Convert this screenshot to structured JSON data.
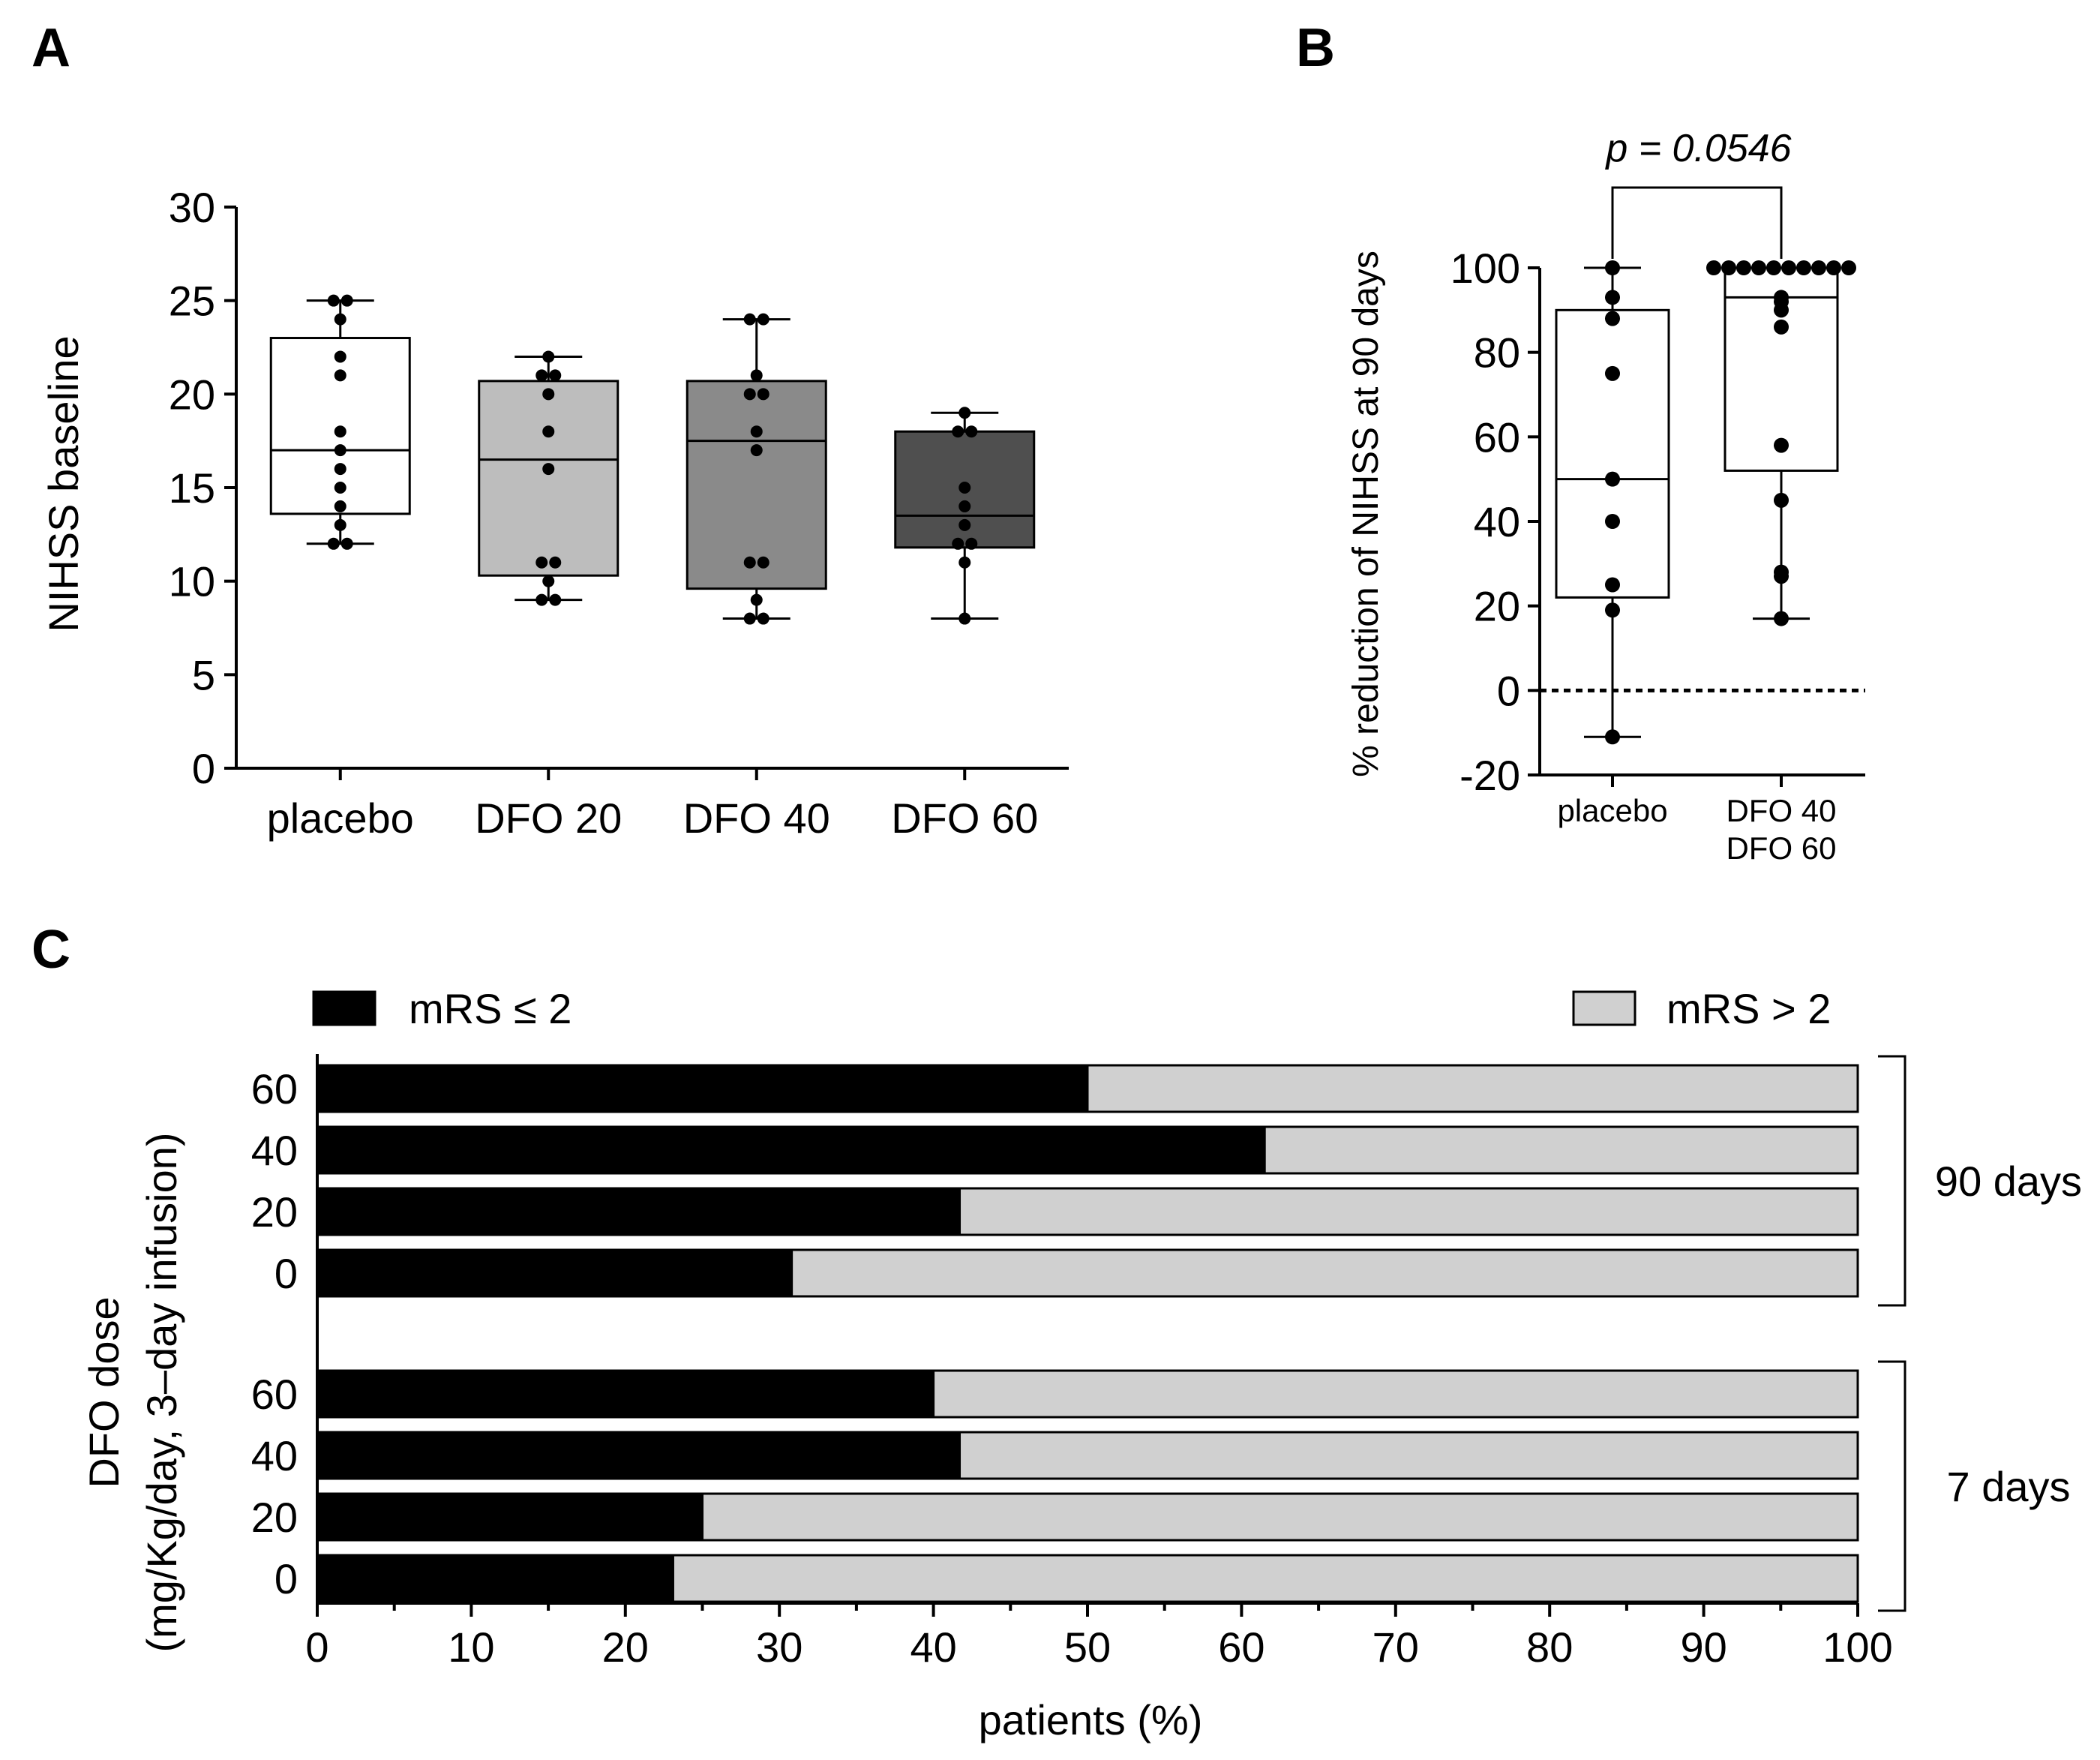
{
  "panels": {
    "A": {
      "letter": "A",
      "chart_data": {
        "type": "box",
        "ylabel": "NIHSS baseline",
        "xlabel": "",
        "ylim": [
          0,
          30
        ],
        "yticks": [
          0,
          5,
          10,
          15,
          20,
          25,
          30
        ],
        "categories": [
          "placebo",
          "DFO 20",
          "DFO 40",
          "DFO 60"
        ],
        "fill_colors": [
          "#ffffff",
          "#bdbdbd",
          "#8a8a8a",
          "#4f4f4f"
        ],
        "boxes": [
          {
            "min": 12,
            "q1": 13.6,
            "median": 17,
            "q3": 23,
            "max": 25
          },
          {
            "min": 9,
            "q1": 10.3,
            "median": 16.5,
            "q3": 20.7,
            "max": 22
          },
          {
            "min": 8,
            "q1": 9.6,
            "median": 17.5,
            "q3": 20.7,
            "max": 24
          },
          {
            "min": 8,
            "q1": 11.8,
            "median": 13.5,
            "q3": 18,
            "max": 19
          }
        ],
        "points": [
          [
            25,
            25,
            24,
            22,
            21,
            18,
            17,
            16,
            15,
            14,
            13,
            12,
            12
          ],
          [
            22,
            21,
            21,
            20,
            18,
            16,
            11,
            11,
            10,
            9,
            9
          ],
          [
            24,
            24,
            21,
            20,
            20,
            18,
            17,
            11,
            11,
            9,
            8,
            8
          ],
          [
            19,
            18,
            18,
            15,
            14,
            13,
            12,
            12,
            11,
            8
          ]
        ]
      }
    },
    "B": {
      "letter": "B",
      "annotation": "p = 0.0546",
      "chart_data": {
        "type": "box",
        "ylabel": "% reduction of NIHSS at 90 days",
        "xlabel": "",
        "ylim": [
          -20,
          100
        ],
        "yticks": [
          -20,
          0,
          20,
          40,
          60,
          80,
          100
        ],
        "reference_line": 0,
        "categories": [
          [
            "placebo"
          ],
          [
            "DFO 40",
            "DFO 60"
          ]
        ],
        "boxes": [
          {
            "min": -11,
            "q1": 22,
            "median": 50,
            "q3": 90,
            "max": 100
          },
          {
            "min": 17,
            "q1": 52,
            "median": 93,
            "q3": 100,
            "max": 100
          }
        ],
        "points": [
          [
            100,
            93,
            88,
            75,
            50,
            40,
            25,
            19,
            -11
          ],
          [
            100,
            100,
            100,
            100,
            100,
            100,
            100,
            100,
            100,
            100,
            93,
            92,
            90,
            86,
            58,
            45,
            28,
            27,
            17
          ]
        ]
      }
    },
    "C": {
      "letter": "C",
      "chart_data": {
        "type": "stacked-bar-horizontal",
        "xlabel": "patients (%)",
        "ylabel_lines": [
          "DFO dose",
          "(mg/Kg/day, 3–day infusion)"
        ],
        "xlim": [
          0,
          100
        ],
        "xticks": [
          0,
          10,
          20,
          30,
          40,
          50,
          60,
          70,
          80,
          90,
          100
        ],
        "legend": [
          {
            "label": "mRS ≤ 2",
            "color": "#000000"
          },
          {
            "label": "mRS > 2",
            "color": "#d0d0d0"
          }
        ],
        "groups": [
          {
            "label": "90 days",
            "categories": [
              "60",
              "40",
              "20",
              "0"
            ],
            "good_outcome": [
              50,
              61.5,
              41.7,
              30.8
            ]
          },
          {
            "label": "7 days",
            "categories": [
              "60",
              "40",
              "20",
              "0"
            ],
            "good_outcome": [
              40,
              41.7,
              25,
              23.1
            ]
          }
        ]
      }
    }
  }
}
